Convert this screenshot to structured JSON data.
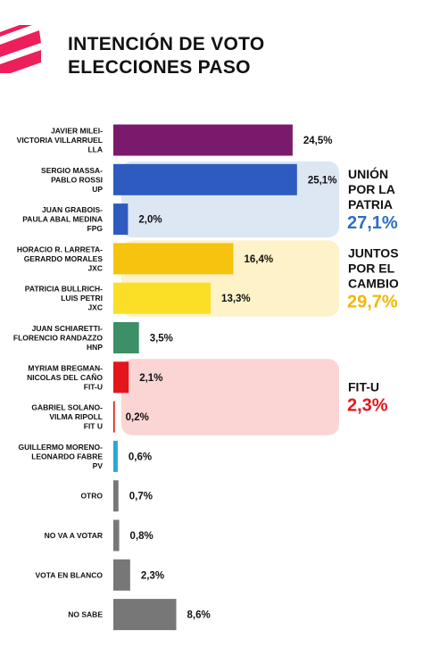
{
  "header": {
    "title_line1": "INTENCIÓN DE VOTO",
    "title_line2": "ELECCIONES PASO"
  },
  "colors": {
    "logo": "#ec1f5a",
    "lla": "#7b1a6c",
    "up": "#2e5bbf",
    "jxc": "#f6c30f",
    "hnp": "#3c8f66",
    "fitu": "#e3161b",
    "pv": "#2aa8d3",
    "other": "#777777",
    "up_group_bg": "#dde7f4",
    "jxc_group_bg": "#fdf2c8",
    "fitu_group_bg": "#fbd4d4"
  },
  "chart_data": {
    "type": "bar",
    "orientation": "horizontal",
    "title": "INTENCIÓN DE VOTO ELECCIONES PASO",
    "categories": [
      [
        "JAVIER MILEI-",
        "VICTORIA VILLARRUEL",
        "LLA"
      ],
      [
        "SERGIO MASSA-",
        "PABLO ROSSI",
        "UP"
      ],
      [
        "JUAN GRABOIS-",
        "PAULA ABAL MEDINA",
        "FPG"
      ],
      [
        "HORACIO R. LARRETA-",
        "GERARDO MORALES",
        "JXC"
      ],
      [
        "PATRICIA BULLRICH-",
        "LUIS PETRI",
        "JXC"
      ],
      [
        "JUAN SCHIARETTI-",
        "FLORENCIO RANDAZZO",
        "HNP"
      ],
      [
        "MYRIAM BREGMAN-",
        "NICOLAS DEL CAÑO",
        "FIT-U"
      ],
      [
        "GABRIEL SOLANO-",
        "VILMA RIPOLL",
        "FIT U"
      ],
      [
        "GUILLERMO MORENO-",
        "LEONARDO FABRE",
        "PV"
      ],
      [
        "OTRO"
      ],
      [
        "NO VA A VOTAR"
      ],
      [
        "VOTA EN BLANCO"
      ],
      [
        "NO SABE"
      ]
    ],
    "values": [
      24.5,
      25.1,
      2.0,
      16.4,
      13.3,
      3.5,
      2.1,
      0.2,
      0.6,
      0.7,
      0.8,
      2.3,
      8.6
    ],
    "value_labels": [
      "24,5%",
      "25,1%",
      "2,0%",
      "16,4%",
      "13,3%",
      "3,5%",
      "2,1%",
      "0,2%",
      "0,6%",
      "0,7%",
      "0,8%",
      "2,3%",
      "8,6%"
    ],
    "bar_colors": [
      "#7b1a6c",
      "#2e5bbf",
      "#2e5bbf",
      "#f6c30f",
      "#fbdf27",
      "#3c8f66",
      "#e3161b",
      "#e3161b",
      "#2aa8d3",
      "#777777",
      "#777777",
      "#777777",
      "#777777"
    ],
    "groups": [
      {
        "name_lines": [
          "UNIÓN",
          "POR LA",
          "PATRIA"
        ],
        "total": "27,1%",
        "rows": [
          1,
          2
        ],
        "color": "#2e6fc4",
        "bg": "#dde7f4"
      },
      {
        "name_lines": [
          "JUNTOS",
          "POR EL",
          "CAMBIO"
        ],
        "total": "29,7%",
        "rows": [
          3,
          4
        ],
        "color": "#f2b705",
        "bg": "#fdf2c8"
      },
      {
        "name_lines": [
          "FIT-U"
        ],
        "total": "2,3%",
        "rows": [
          6,
          7
        ],
        "color": "#e3161b",
        "bg": "#fbd4d4"
      }
    ],
    "xlim": [
      0,
      30
    ],
    "grid": false,
    "legend": "none"
  }
}
